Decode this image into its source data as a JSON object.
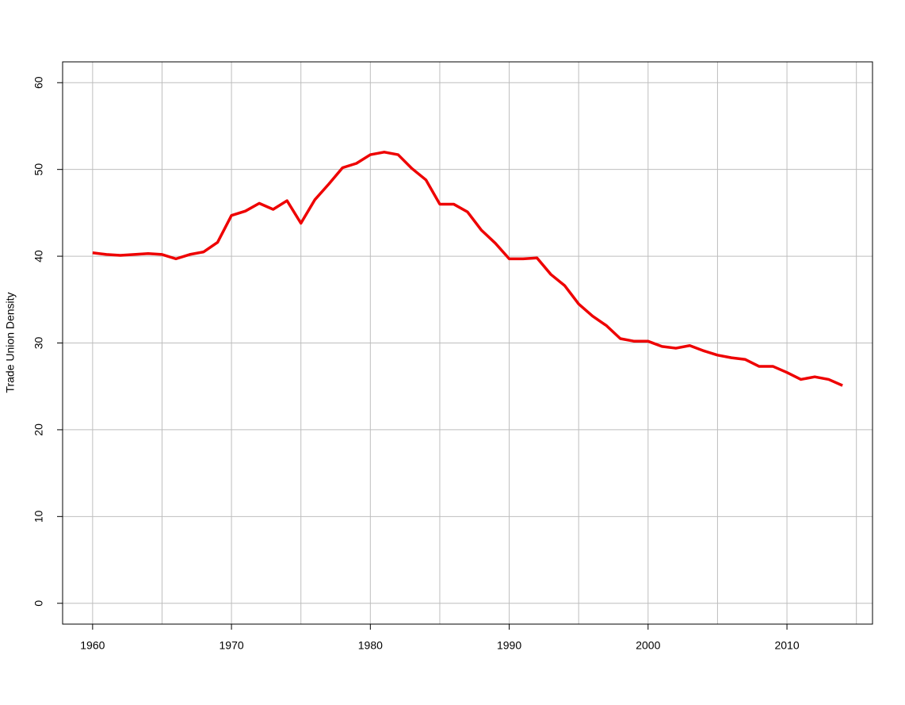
{
  "chart_data": {
    "type": "line",
    "ylabel": "Trade Union Density",
    "x": [
      1960,
      1961,
      1962,
      1963,
      1964,
      1965,
      1966,
      1967,
      1968,
      1969,
      1970,
      1971,
      1972,
      1973,
      1974,
      1975,
      1976,
      1977,
      1978,
      1979,
      1980,
      1981,
      1982,
      1983,
      1984,
      1985,
      1986,
      1987,
      1988,
      1989,
      1990,
      1991,
      1992,
      1993,
      1994,
      1995,
      1996,
      1997,
      1998,
      1999,
      2000,
      2001,
      2002,
      2003,
      2004,
      2005,
      2006,
      2007,
      2008,
      2009,
      2010,
      2011,
      2012,
      2013,
      2014
    ],
    "values": [
      40.4,
      40.2,
      40.1,
      40.2,
      40.3,
      40.2,
      39.7,
      40.2,
      40.5,
      41.6,
      44.7,
      45.2,
      46.1,
      45.4,
      46.4,
      43.8,
      46.5,
      48.3,
      50.2,
      50.7,
      51.7,
      52.0,
      51.7,
      50.1,
      48.8,
      46.0,
      46.0,
      45.1,
      43.0,
      41.5,
      39.7,
      39.7,
      39.8,
      37.9,
      36.6,
      34.5,
      33.1,
      32.0,
      30.5,
      30.2,
      30.2,
      29.6,
      29.4,
      29.7,
      29.1,
      28.6,
      28.3,
      28.1,
      27.3,
      27.3,
      26.6,
      25.8,
      26.1,
      25.8,
      25.1
    ],
    "color": "#ee0000",
    "xlim": [
      1957.84,
      2016.16
    ],
    "ylim": [
      -2.4,
      62.4
    ],
    "xticks": [
      1960,
      1970,
      1980,
      1990,
      2000,
      2010
    ],
    "yticks": [
      0,
      10,
      20,
      30,
      40,
      50,
      60
    ],
    "xgrid": [
      1960,
      1965,
      1970,
      1975,
      1980,
      1985,
      1990,
      1995,
      2000,
      2005,
      2010,
      2015
    ],
    "grid": true
  }
}
